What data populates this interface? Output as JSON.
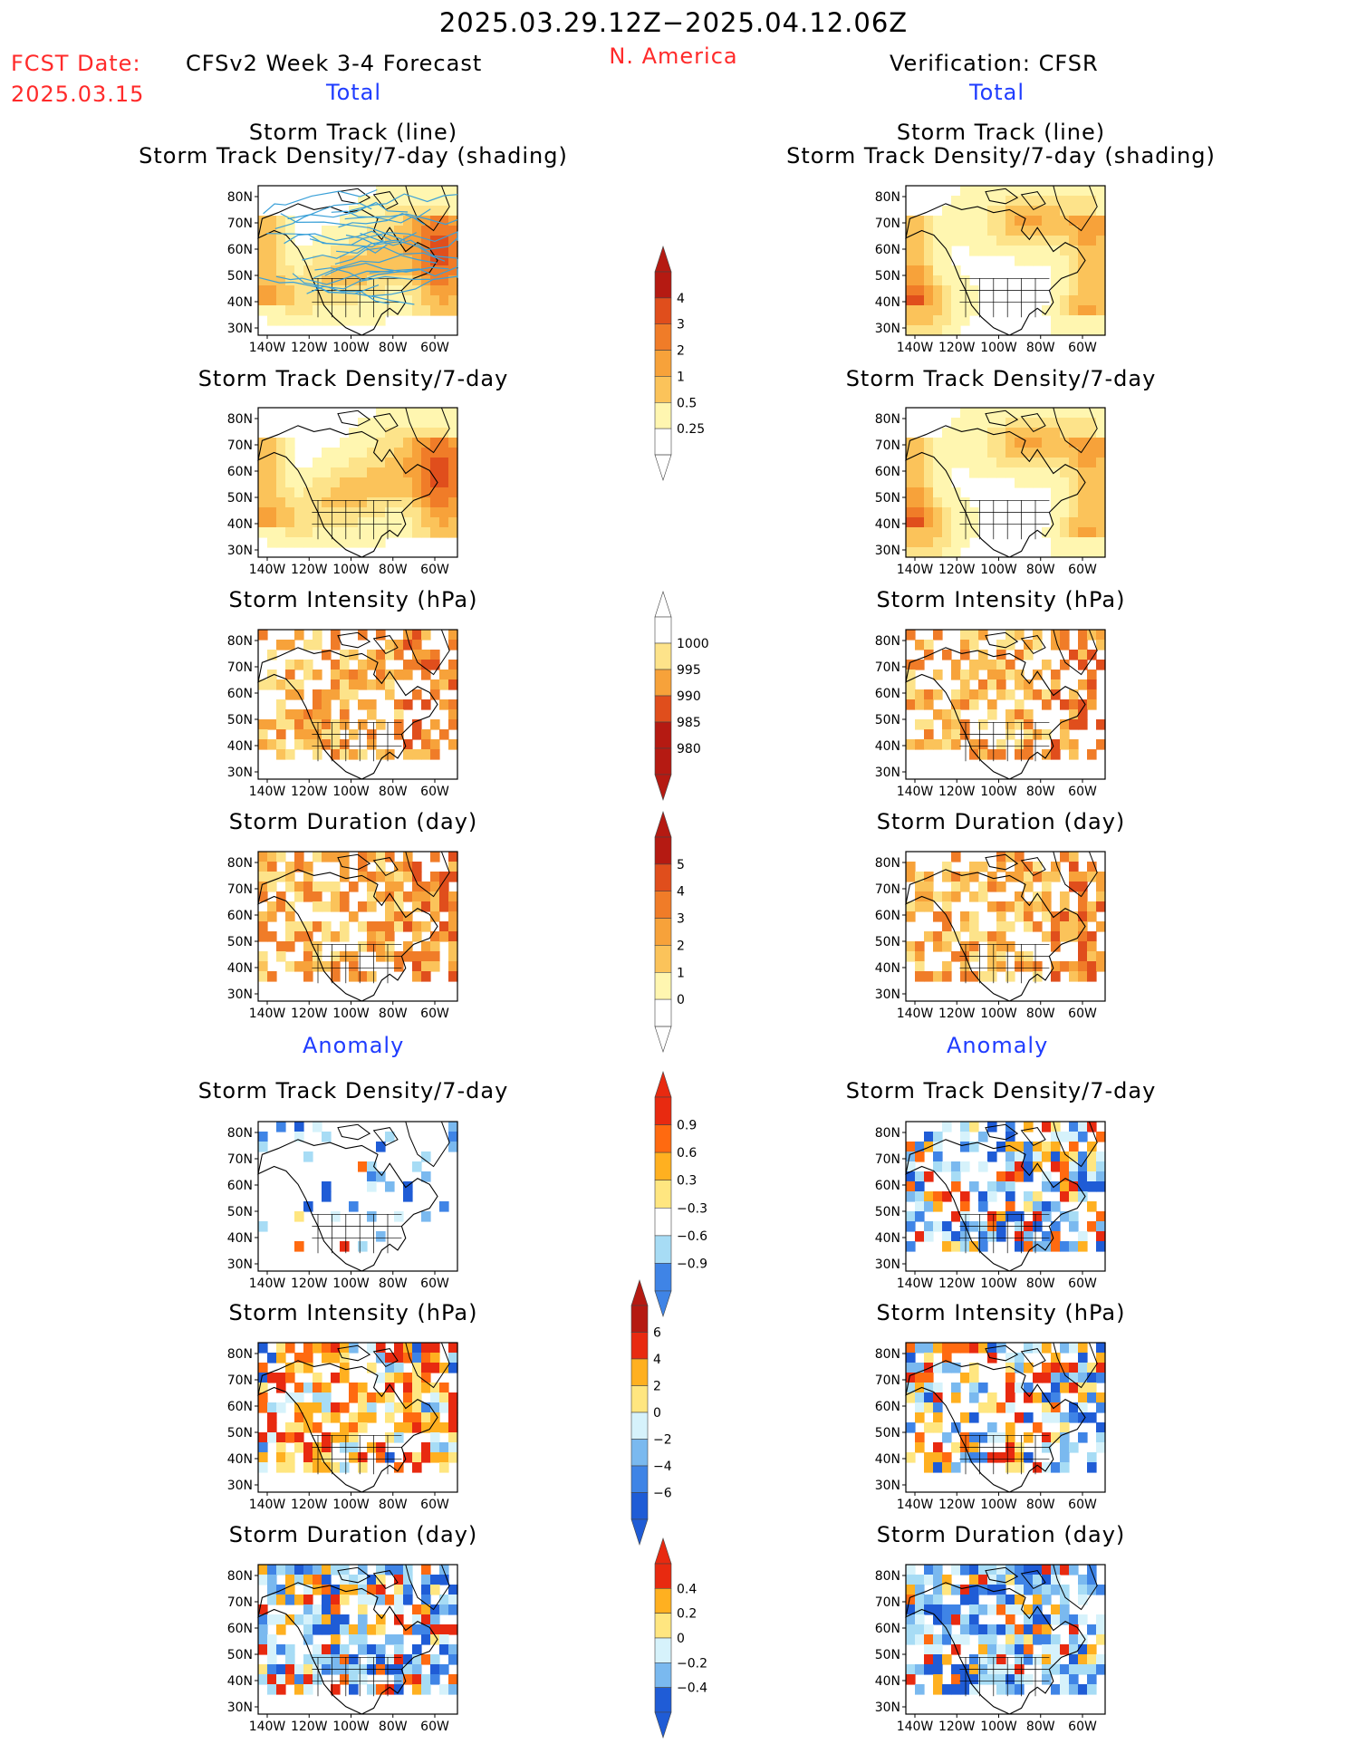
{
  "header": {
    "date_range": "2025.03.29.12Z−2025.04.12.06Z",
    "fcst_label": "FCST Date:",
    "fcst_date": "2025.03.15",
    "left_title": "CFSv2 Week 3-4 Forecast",
    "region": "N. America",
    "right_title": "Verification: CFSR"
  },
  "sections": {
    "total": "Total",
    "anomaly": "Anomaly"
  },
  "panel_titles": {
    "track_line": "Storm Track (line)",
    "track_shading": "Storm Track Density/7-day (shading)",
    "density": "Storm Track Density/7-day",
    "intensity": "Storm Intensity (hPa)",
    "duration": "Storm Duration (day)"
  },
  "axis": {
    "lat_labels": [
      "80N",
      "70N",
      "60N",
      "50N",
      "40N",
      "30N"
    ],
    "lon_labels": [
      "140W",
      "120W",
      "100W",
      "80W",
      "60W"
    ]
  },
  "colorbars": {
    "density_total": [
      "4",
      "3",
      "2",
      "1",
      "0.5",
      "0.25"
    ],
    "intensity_total": [
      "1000",
      "995",
      "990",
      "985",
      "980"
    ],
    "duration_total": [
      "5",
      "4",
      "3",
      "2",
      "1",
      "0"
    ],
    "density_anom": [
      "0.9",
      "0.6",
      "0.3",
      "−0.3",
      "−0.6",
      "−0.9"
    ],
    "intensity_anom": [
      "6",
      "4",
      "2",
      "0",
      "−2",
      "−4",
      "−6"
    ],
    "duration_anom": [
      "0.4",
      "0.2",
      "0",
      "−0.2",
      "−0.4"
    ]
  },
  "colors": {
    "title_red": "#ff2a2a",
    "section_blue": "#1f3cff",
    "track_line": "#3aa0d8",
    "warm_scale": [
      "#fff6b0",
      "#fde38a",
      "#fbc35a",
      "#f7a23a",
      "#f07c28",
      "#e04e1c",
      "#b51a12"
    ],
    "anom_warm": [
      "#ffe680",
      "#ffb020",
      "#ff6a10",
      "#e82a10"
    ],
    "anom_cool": [
      "#d6f2fb",
      "#a7dcf5",
      "#7ab9ef",
      "#3f84e6",
      "#1f5cd6"
    ]
  }
}
